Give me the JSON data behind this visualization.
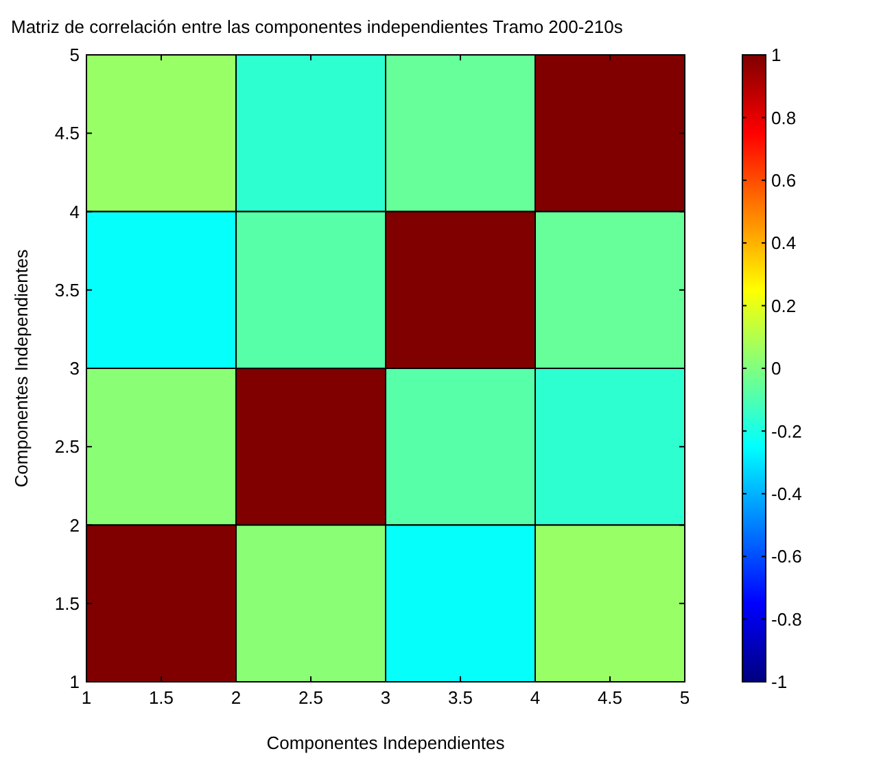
{
  "chart_data": {
    "type": "heatmap",
    "title": "Matriz de correlación entre las componentes independientes Tramo 200-210s",
    "xlabel": "Componentes Independientes",
    "ylabel": "Componentes Independientes",
    "cells": [
      [
        0.05,
        -0.16,
        -0.05,
        1
      ],
      [
        -0.24,
        -0.08,
        1,
        -0.05
      ],
      [
        0.02,
        1,
        -0.08,
        -0.16
      ],
      [
        1,
        0.02,
        -0.24,
        0.05
      ]
    ],
    "xlim": [
      1,
      5
    ],
    "xticks": [
      1,
      1.5,
      2,
      2.5,
      3,
      3.5,
      4,
      4.5,
      5
    ],
    "ylim": [
      1,
      5
    ],
    "yticks": [
      1,
      1.5,
      2,
      2.5,
      3,
      3.5,
      4,
      4.5,
      5
    ],
    "clim": [
      -1,
      1
    ],
    "cticks": [
      -1,
      -0.8,
      -0.6,
      -0.4,
      -0.2,
      0,
      0.2,
      0.4,
      0.6,
      0.8,
      1
    ]
  }
}
